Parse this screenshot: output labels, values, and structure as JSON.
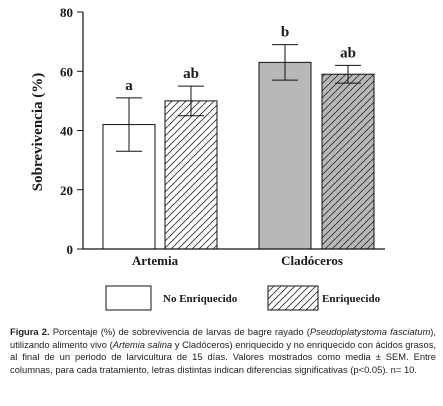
{
  "chart_data": {
    "type": "bar",
    "ylabel": "Sobrevivencia (%)",
    "ylim": [
      0,
      80
    ],
    "yticks": [
      0,
      20,
      40,
      60,
      80
    ],
    "grid": false,
    "legend_position": "bottom",
    "categories": [
      "Artemia",
      "Cladóceros"
    ],
    "series": [
      {
        "name": "No Enriquecido",
        "pattern": "solid",
        "colors": [
          "#ffffff",
          "#b8b8b8"
        ],
        "values": [
          42,
          63
        ],
        "errors": [
          9,
          6
        ],
        "letters": [
          "a",
          "b"
        ]
      },
      {
        "name": "Enriquecido",
        "pattern": "hatched",
        "colors": [
          "#ffffff",
          "#b8b8b8"
        ],
        "values": [
          50,
          59
        ],
        "errors": [
          5,
          3
        ],
        "letters": [
          "ab",
          "ab"
        ]
      }
    ]
  },
  "caption": {
    "label": "Figura 2.",
    "t1": " Porcentaje (%) de sobrevivencia de larvas de bagre rayado (",
    "i1": "Pseudoplatystoma fasciatum",
    "t2": "), utilizando alimento vivo (",
    "i2": "Artemia salina",
    "t3": " y Cladóceros) enriquecido y no enriquecido con ácidos grasos, al final de un periodo de larvicultura de 15 días. Valores mostrados como media ± SEM. Entre columnas, para cada tratamiento, letras distintas indican diferencias significativas (p<0.05). n= 10."
  }
}
